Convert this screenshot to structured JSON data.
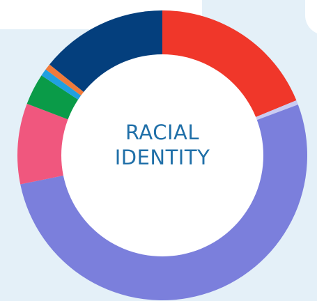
{
  "chart_data": {
    "type": "donut",
    "title": "RACIAL IDENTITY",
    "values": [
      18.8,
      0.5,
      52.5,
      9,
      3.5,
      0.8,
      0.7,
      14.2
    ],
    "colors": [
      "#f0372a",
      "#c9cbf2",
      "#7b7fdc",
      "#f0577e",
      "#0a9b48",
      "#20a0e0",
      "#f07a3a",
      "#043f7d"
    ]
  }
}
